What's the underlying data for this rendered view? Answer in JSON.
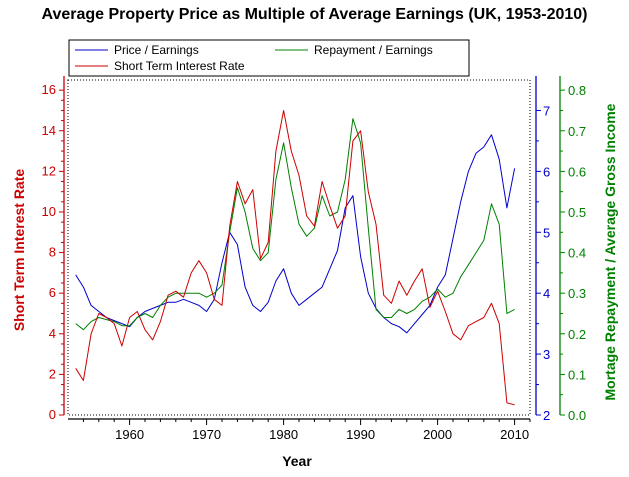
{
  "chart_data": {
    "type": "line",
    "title": "Average Property Price as Multiple of Average Earnings (UK, 1953-2010)",
    "xlabel": "Year",
    "ylabel_left": "Short Term Interest Rate",
    "ylabel_right1": "",
    "ylabel_right2": "Mortage Repayment / Average Gross Income",
    "xlim": [
      1952,
      2012
    ],
    "ylim_left": [
      0,
      16.5
    ],
    "ylim_right1": [
      2,
      7.5
    ],
    "ylim_right2": [
      0,
      0.825
    ],
    "x_ticks": [
      1960,
      1970,
      1980,
      1990,
      2000,
      2010
    ],
    "y_ticks_left": [
      0,
      2,
      4,
      6,
      8,
      10,
      12,
      14,
      16
    ],
    "y_ticks_right1": [
      2,
      3,
      4,
      5,
      6,
      7
    ],
    "y_ticks_right2": [
      "0.0",
      "0.1",
      "0.2",
      "0.3",
      "0.4",
      "0.5",
      "0.6",
      "0.7",
      "0.8"
    ],
    "legend_placement": "top",
    "colors": {
      "price": "#0000cc",
      "repay": "#008000",
      "rate": "#cc0000"
    },
    "series": [
      {
        "name": "Price / Earnings",
        "axis": "right1",
        "color": "#0000cc",
        "x": [
          1953,
          1954,
          1955,
          1956,
          1957,
          1958,
          1959,
          1960,
          1961,
          1962,
          1963,
          1964,
          1965,
          1966,
          1967,
          1968,
          1969,
          1970,
          1971,
          1972,
          1973,
          1974,
          1975,
          1976,
          1977,
          1978,
          1979,
          1980,
          1981,
          1982,
          1983,
          1984,
          1985,
          1986,
          1987,
          1988,
          1989,
          1990,
          1991,
          1992,
          1993,
          1994,
          1995,
          1996,
          1997,
          1998,
          1999,
          2000,
          2001,
          2002,
          2003,
          2004,
          2005,
          2006,
          2007,
          2008,
          2009,
          2010
        ],
        "values": [
          4.3,
          4.1,
          3.8,
          3.7,
          3.6,
          3.55,
          3.5,
          3.45,
          3.6,
          3.7,
          3.75,
          3.8,
          3.85,
          3.85,
          3.9,
          3.85,
          3.8,
          3.7,
          3.9,
          4.5,
          5.0,
          4.8,
          4.1,
          3.8,
          3.7,
          3.85,
          4.2,
          4.4,
          4.0,
          3.8,
          3.9,
          4.0,
          4.1,
          4.4,
          4.7,
          5.4,
          5.6,
          4.6,
          4.0,
          3.75,
          3.6,
          3.5,
          3.45,
          3.35,
          3.5,
          3.65,
          3.8,
          4.1,
          4.3,
          4.9,
          5.5,
          6.0,
          6.3,
          6.4,
          6.6,
          6.2,
          5.4,
          6.05
        ]
      },
      {
        "name": "Repayment / Earnings",
        "axis": "right2",
        "color": "#008000",
        "x": [
          1953,
          1954,
          1955,
          1956,
          1957,
          1958,
          1959,
          1960,
          1961,
          1962,
          1963,
          1964,
          1965,
          1966,
          1967,
          1968,
          1969,
          1970,
          1971,
          1972,
          1973,
          1974,
          1975,
          1976,
          1977,
          1978,
          1979,
          1980,
          1981,
          1982,
          1983,
          1984,
          1985,
          1986,
          1987,
          1988,
          1989,
          1990,
          1991,
          1992,
          1993,
          1994,
          1995,
          1996,
          1997,
          1998,
          1999,
          2000,
          2001,
          2002,
          2003,
          2004,
          2005,
          2006,
          2007,
          2008,
          2009,
          2010
        ],
        "values": [
          0.225,
          0.21,
          0.23,
          0.24,
          0.235,
          0.23,
          0.22,
          0.22,
          0.24,
          0.25,
          0.24,
          0.27,
          0.29,
          0.3,
          0.3,
          0.3,
          0.3,
          0.29,
          0.3,
          0.32,
          0.45,
          0.56,
          0.5,
          0.41,
          0.38,
          0.4,
          0.58,
          0.67,
          0.56,
          0.47,
          0.44,
          0.46,
          0.54,
          0.49,
          0.5,
          0.58,
          0.73,
          0.67,
          0.46,
          0.26,
          0.24,
          0.24,
          0.26,
          0.25,
          0.26,
          0.28,
          0.29,
          0.31,
          0.29,
          0.3,
          0.34,
          0.37,
          0.4,
          0.43,
          0.52,
          0.47,
          0.25,
          0.26
        ]
      },
      {
        "name": "Short Term Interest Rate",
        "axis": "left",
        "color": "#cc0000",
        "x": [
          1953,
          1954,
          1955,
          1956,
          1957,
          1958,
          1959,
          1960,
          1961,
          1962,
          1963,
          1964,
          1965,
          1966,
          1967,
          1968,
          1969,
          1970,
          1971,
          1972,
          1973,
          1974,
          1975,
          1976,
          1977,
          1978,
          1979,
          1980,
          1981,
          1982,
          1983,
          1984,
          1985,
          1986,
          1987,
          1988,
          1989,
          1990,
          1991,
          1992,
          1993,
          1994,
          1995,
          1996,
          1997,
          1998,
          1999,
          2000,
          2001,
          2002,
          2003,
          2004,
          2005,
          2006,
          2007,
          2008,
          2009,
          2010
        ],
        "values": [
          2.3,
          1.7,
          4.0,
          5.0,
          4.8,
          4.5,
          3.4,
          4.8,
          5.1,
          4.2,
          3.7,
          4.6,
          5.9,
          6.1,
          5.8,
          7.0,
          7.6,
          7.0,
          5.7,
          5.4,
          9.3,
          11.5,
          10.4,
          11.1,
          7.7,
          8.5,
          13.0,
          15.0,
          13.0,
          11.8,
          9.8,
          9.3,
          11.5,
          10.3,
          9.2,
          9.8,
          13.5,
          14.0,
          11.0,
          9.4,
          5.9,
          5.5,
          6.6,
          5.9,
          6.6,
          7.2,
          5.3,
          6.1,
          5.1,
          4.0,
          3.7,
          4.4,
          4.6,
          4.8,
          5.5,
          4.5,
          0.6,
          0.5
        ]
      }
    ]
  }
}
